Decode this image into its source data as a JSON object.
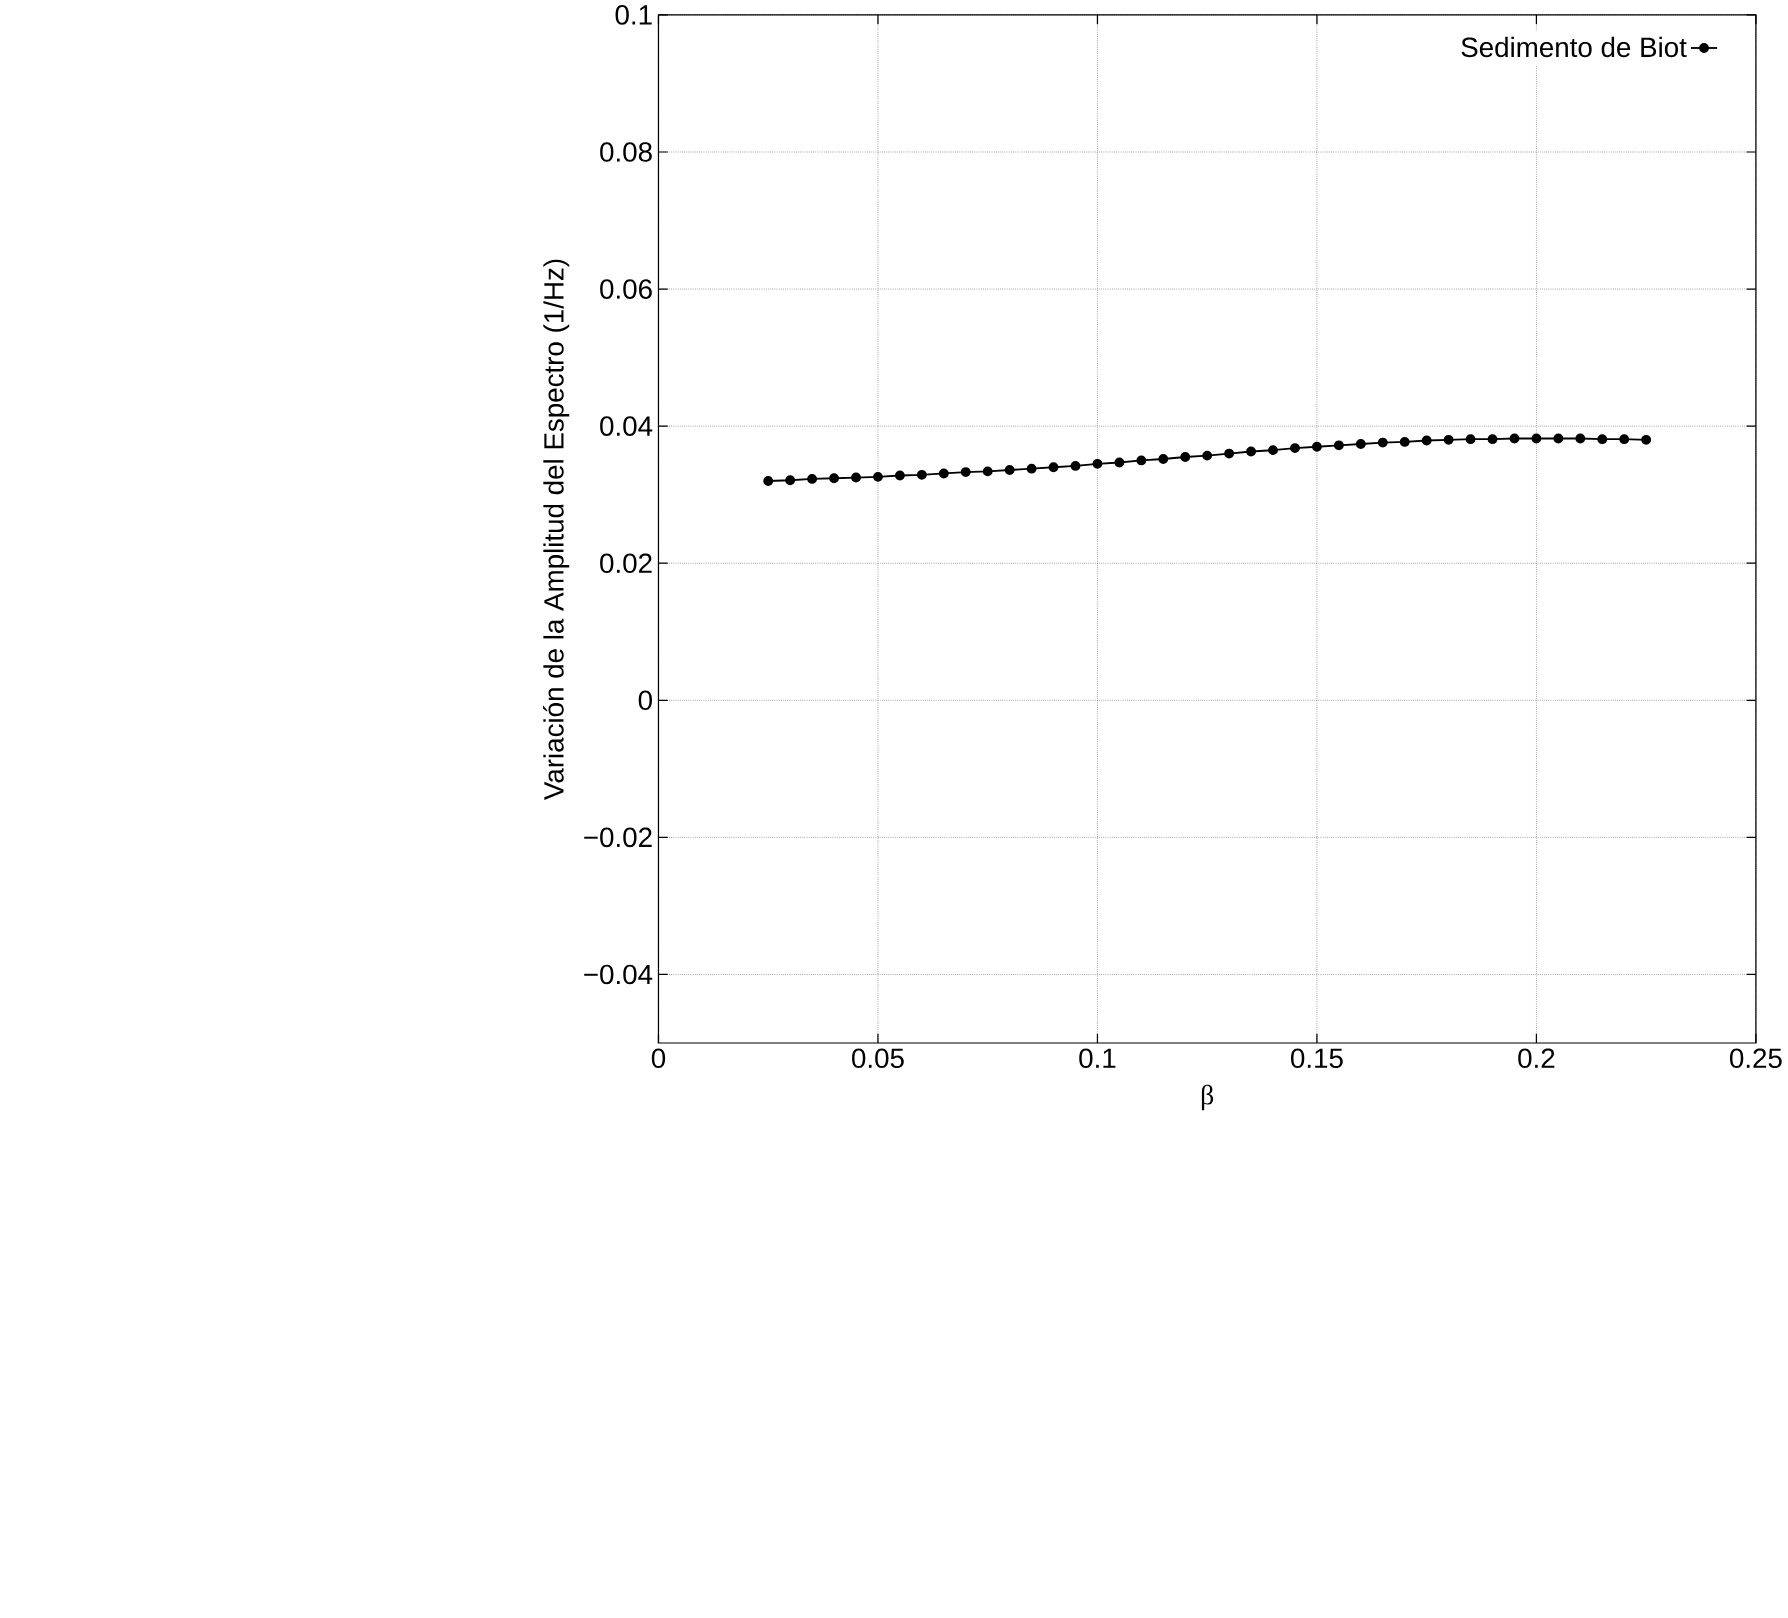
{
  "chart_data": {
    "type": "line",
    "xlabel": "β",
    "ylabel": "Variación de la Amplitud del Espectro (1/Hz)",
    "xlim": [
      0,
      0.25
    ],
    "ylim": [
      -0.05,
      0.1
    ],
    "xticks": [
      0,
      0.05,
      0.1,
      0.15,
      0.2,
      0.25
    ],
    "yticks": [
      {
        "value": -0.04,
        "label": "−0.04"
      },
      {
        "value": -0.02,
        "label": "−0.02"
      },
      0,
      0.02,
      0.04,
      0.06,
      0.08,
      0.1
    ],
    "grid": true,
    "legend": "top right",
    "marker": "circle",
    "line_style": "solid",
    "series": [
      {
        "name": "Sedimento de Biot",
        "color": "#000000",
        "x": [
          0.025,
          0.03,
          0.035,
          0.04,
          0.045,
          0.05,
          0.055,
          0.06,
          0.065,
          0.07,
          0.075,
          0.08,
          0.085,
          0.09,
          0.095,
          0.1,
          0.105,
          0.11,
          0.115,
          0.12,
          0.125,
          0.13,
          0.135,
          0.14,
          0.145,
          0.15,
          0.155,
          0.16,
          0.165,
          0.17,
          0.175,
          0.18,
          0.185,
          0.19,
          0.195,
          0.2,
          0.205,
          0.21,
          0.215,
          0.22,
          0.225
        ],
        "values": [
          0.032,
          0.0321,
          0.0323,
          0.0324,
          0.0325,
          0.0326,
          0.0328,
          0.0329,
          0.0331,
          0.0333,
          0.0334,
          0.0336,
          0.0338,
          0.034,
          0.0342,
          0.0345,
          0.0347,
          0.035,
          0.0352,
          0.0355,
          0.0357,
          0.036,
          0.0363,
          0.0365,
          0.0368,
          0.037,
          0.0372,
          0.0374,
          0.0376,
          0.0377,
          0.0379,
          0.038,
          0.0381,
          0.0381,
          0.0382,
          0.0382,
          0.0382,
          0.0382,
          0.0381,
          0.0381,
          0.038
        ]
      }
    ]
  }
}
